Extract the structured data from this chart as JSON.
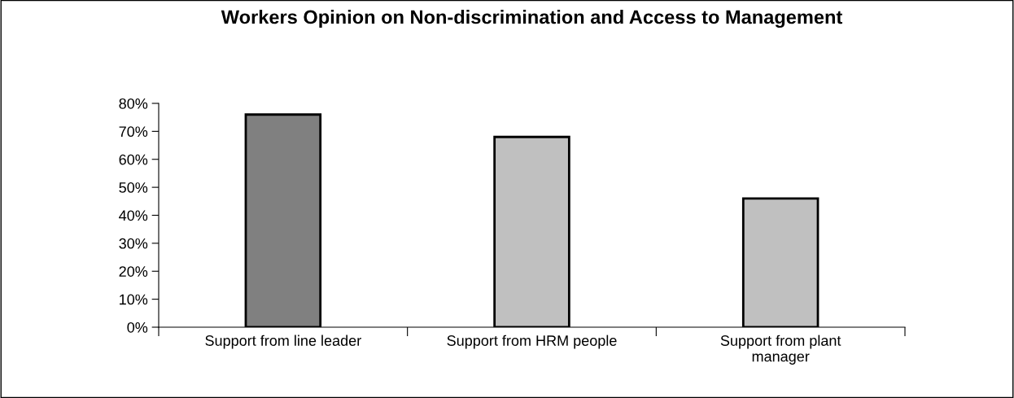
{
  "chart_data": {
    "type": "bar",
    "title": "Workers Opinion on Non-discrimination and Access to Management",
    "categories": [
      "Support from line leader",
      "Support from HRM people",
      "Support from plant manager"
    ],
    "values": [
      76,
      68,
      46
    ],
    "colors": [
      "#808080",
      "#c0c0c0",
      "#c0c0c0"
    ],
    "ylim": [
      0,
      80
    ],
    "yticks": [
      {
        "value": 0,
        "label": "0%"
      },
      {
        "value": 10,
        "label": "10%"
      },
      {
        "value": 20,
        "label": "20%"
      },
      {
        "value": 30,
        "label": "30%"
      },
      {
        "value": 40,
        "label": "40%"
      },
      {
        "value": 50,
        "label": "50%"
      },
      {
        "value": 60,
        "label": "60%"
      },
      {
        "value": 70,
        "label": "70%"
      },
      {
        "value": 80,
        "label": "80%"
      }
    ],
    "grid": false,
    "legend": false
  }
}
